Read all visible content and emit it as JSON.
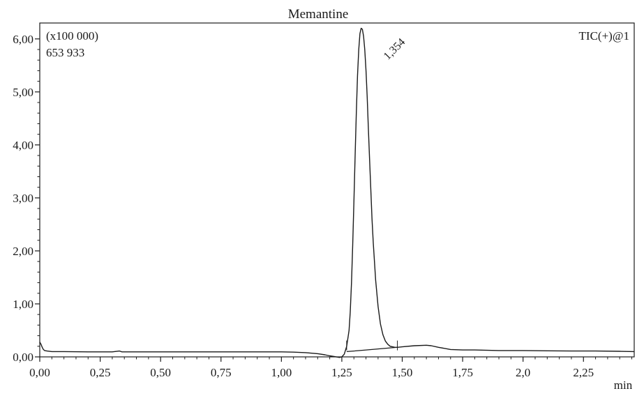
{
  "chart_data": {
    "type": "line",
    "title": "Memantine",
    "scale_label": "(x100 000)",
    "max_intensity_label": "653 933",
    "trace_label": "TIC(+)@1",
    "xlabel": "min",
    "ylabel": "",
    "xlim": [
      0.0,
      2.46
    ],
    "ylim": [
      0.0,
      6.3
    ],
    "x_ticks": [
      0.0,
      0.25,
      0.5,
      0.75,
      1.0,
      1.25,
      1.5,
      1.75,
      2.0,
      2.25
    ],
    "x_tick_labels": [
      "0,00",
      "0,25",
      "0,50",
      "0,75",
      "1,00",
      "1,25",
      "1,50",
      "1,75",
      "2,0",
      "2,25"
    ],
    "y_ticks": [
      0.0,
      1.0,
      2.0,
      3.0,
      4.0,
      5.0,
      6.0
    ],
    "y_tick_labels": [
      "0,00",
      "1,00",
      "2,00",
      "3,00",
      "4,00",
      "5,00",
      "6,00"
    ],
    "grid": false,
    "line_color": "#1a1a1a",
    "series": [
      {
        "x": [
          0.0,
          0.005,
          0.01,
          0.015,
          0.02,
          0.03,
          0.05,
          0.1,
          0.2,
          0.3,
          0.33,
          0.34,
          0.4,
          0.5,
          0.6,
          0.7,
          0.8,
          0.9,
          1.0,
          1.05,
          1.1,
          1.15,
          1.18,
          1.2,
          1.22,
          1.24,
          1.25,
          1.26,
          1.27,
          1.28,
          1.285,
          1.29,
          1.295,
          1.3,
          1.305,
          1.31,
          1.315,
          1.32,
          1.325,
          1.33,
          1.335,
          1.34,
          1.345,
          1.35,
          1.355,
          1.36,
          1.365,
          1.37,
          1.375,
          1.38,
          1.39,
          1.4,
          1.41,
          1.42,
          1.43,
          1.44,
          1.45,
          1.46,
          1.47,
          1.48,
          1.5,
          1.55,
          1.6,
          1.62,
          1.65,
          1.7,
          1.75,
          1.8,
          1.9,
          2.0,
          2.1,
          2.2,
          2.3,
          2.4,
          2.46
        ],
        "y": [
          0.28,
          0.24,
          0.18,
          0.14,
          0.12,
          0.11,
          0.1,
          0.1,
          0.095,
          0.095,
          0.11,
          0.095,
          0.095,
          0.095,
          0.095,
          0.095,
          0.095,
          0.095,
          0.095,
          0.09,
          0.08,
          0.06,
          0.04,
          0.02,
          0.005,
          -0.01,
          0.0,
          0.05,
          0.2,
          0.5,
          0.85,
          1.4,
          2.1,
          2.9,
          3.8,
          4.6,
          5.3,
          5.8,
          6.1,
          6.2,
          6.18,
          6.05,
          5.8,
          5.4,
          4.9,
          4.3,
          3.7,
          3.15,
          2.6,
          2.15,
          1.45,
          0.95,
          0.62,
          0.42,
          0.3,
          0.24,
          0.2,
          0.19,
          0.18,
          0.18,
          0.19,
          0.21,
          0.22,
          0.21,
          0.18,
          0.14,
          0.13,
          0.13,
          0.12,
          0.12,
          0.115,
          0.11,
          0.11,
          0.105,
          0.1
        ]
      }
    ],
    "baseline": {
      "x": [
        1.27,
        1.3,
        1.35,
        1.4,
        1.45,
        1.48
      ],
      "y": [
        0.1,
        0.11,
        0.13,
        0.15,
        0.17,
        0.18
      ]
    },
    "peaks": [
      {
        "label": "1,354",
        "x": 1.354,
        "y": 6.2
      }
    ],
    "integration_marks": [
      1.27,
      1.48
    ]
  }
}
